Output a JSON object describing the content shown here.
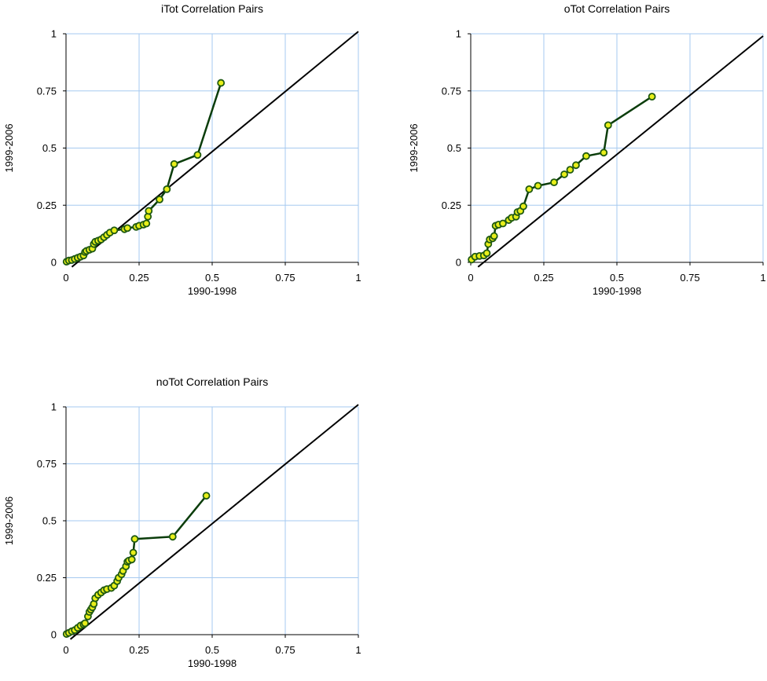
{
  "colors": {
    "grid": "#a6caf0",
    "series_line": "#0b3d0b",
    "marker_fill": "#e8ef1a",
    "marker_stroke": "#1f5a12",
    "reference_line": "#000000"
  },
  "chart_data": [
    {
      "type": "scatter",
      "title": "iTot Correlation Pairs",
      "xlabel": "1990-1998",
      "ylabel": "1999-2006",
      "xlim": [
        0,
        1
      ],
      "ylim": [
        0,
        1
      ],
      "xticks": [
        "0",
        "0.25",
        "0.5",
        "0.75",
        "1"
      ],
      "yticks": [
        "0",
        "0.25",
        "0.5",
        "0.75",
        "1"
      ],
      "grid": true,
      "reference_line": [
        [
          0.02,
          -0.02
        ],
        [
          1.0,
          1.01
        ]
      ],
      "points": [
        [
          0.002,
          0.003
        ],
        [
          0.01,
          0.008
        ],
        [
          0.02,
          0.01
        ],
        [
          0.03,
          0.015
        ],
        [
          0.04,
          0.02
        ],
        [
          0.05,
          0.025
        ],
        [
          0.06,
          0.03
        ],
        [
          0.065,
          0.045
        ],
        [
          0.07,
          0.05
        ],
        [
          0.08,
          0.055
        ],
        [
          0.09,
          0.06
        ],
        [
          0.095,
          0.08
        ],
        [
          0.1,
          0.09
        ],
        [
          0.11,
          0.095
        ],
        [
          0.12,
          0.1
        ],
        [
          0.13,
          0.11
        ],
        [
          0.14,
          0.12
        ],
        [
          0.15,
          0.13
        ],
        [
          0.165,
          0.14
        ],
        [
          0.2,
          0.145
        ],
        [
          0.21,
          0.15
        ],
        [
          0.24,
          0.155
        ],
        [
          0.25,
          0.16
        ],
        [
          0.265,
          0.165
        ],
        [
          0.275,
          0.17
        ],
        [
          0.28,
          0.2
        ],
        [
          0.283,
          0.225
        ],
        [
          0.32,
          0.275
        ],
        [
          0.345,
          0.32
        ],
        [
          0.37,
          0.43
        ],
        [
          0.45,
          0.47
        ],
        [
          0.53,
          0.785
        ]
      ]
    },
    {
      "type": "scatter",
      "title": "oTot Correlation Pairs",
      "xlabel": "1990-1998",
      "ylabel": "1999-2006",
      "xlim": [
        0,
        1
      ],
      "ylim": [
        0,
        1
      ],
      "xticks": [
        "0",
        "0.25",
        "0.5",
        "0.75",
        "1"
      ],
      "yticks": [
        "0",
        "0.25",
        "0.5",
        "0.75",
        "1"
      ],
      "grid": true,
      "reference_line": [
        [
          0.025,
          -0.02
        ],
        [
          1.0,
          0.99
        ]
      ],
      "points": [
        [
          0.003,
          0.012
        ],
        [
          0.015,
          0.025
        ],
        [
          0.03,
          0.028
        ],
        [
          0.045,
          0.03
        ],
        [
          0.055,
          0.04
        ],
        [
          0.06,
          0.08
        ],
        [
          0.065,
          0.1
        ],
        [
          0.075,
          0.105
        ],
        [
          0.08,
          0.115
        ],
        [
          0.085,
          0.16
        ],
        [
          0.095,
          0.165
        ],
        [
          0.11,
          0.17
        ],
        [
          0.13,
          0.185
        ],
        [
          0.14,
          0.195
        ],
        [
          0.155,
          0.2
        ],
        [
          0.16,
          0.22
        ],
        [
          0.17,
          0.225
        ],
        [
          0.18,
          0.245
        ],
        [
          0.2,
          0.32
        ],
        [
          0.23,
          0.335
        ],
        [
          0.285,
          0.35
        ],
        [
          0.32,
          0.385
        ],
        [
          0.34,
          0.405
        ],
        [
          0.36,
          0.425
        ],
        [
          0.395,
          0.465
        ],
        [
          0.455,
          0.48
        ],
        [
          0.47,
          0.6
        ],
        [
          0.62,
          0.725
        ]
      ]
    },
    {
      "type": "scatter",
      "title": "noTot Correlation Pairs",
      "xlabel": "1990-1998",
      "ylabel": "1999-2006",
      "xlim": [
        0,
        1
      ],
      "ylim": [
        0,
        1
      ],
      "xticks": [
        "0",
        "0.25",
        "0.5",
        "0.75",
        "1"
      ],
      "yticks": [
        "0",
        "0.25",
        "0.5",
        "0.75",
        "1"
      ],
      "grid": true,
      "reference_line": [
        [
          0.015,
          -0.02
        ],
        [
          1.0,
          1.01
        ]
      ],
      "points": [
        [
          0.002,
          0.003
        ],
        [
          0.01,
          0.008
        ],
        [
          0.02,
          0.015
        ],
        [
          0.03,
          0.02
        ],
        [
          0.04,
          0.03
        ],
        [
          0.05,
          0.04
        ],
        [
          0.06,
          0.045
        ],
        [
          0.065,
          0.05
        ],
        [
          0.075,
          0.08
        ],
        [
          0.08,
          0.1
        ],
        [
          0.085,
          0.11
        ],
        [
          0.09,
          0.12
        ],
        [
          0.095,
          0.135
        ],
        [
          0.1,
          0.16
        ],
        [
          0.11,
          0.175
        ],
        [
          0.12,
          0.185
        ],
        [
          0.13,
          0.195
        ],
        [
          0.14,
          0.2
        ],
        [
          0.155,
          0.205
        ],
        [
          0.165,
          0.215
        ],
        [
          0.175,
          0.235
        ],
        [
          0.18,
          0.25
        ],
        [
          0.19,
          0.265
        ],
        [
          0.195,
          0.28
        ],
        [
          0.205,
          0.3
        ],
        [
          0.21,
          0.32
        ],
        [
          0.215,
          0.325
        ],
        [
          0.225,
          0.33
        ],
        [
          0.23,
          0.36
        ],
        [
          0.235,
          0.42
        ],
        [
          0.365,
          0.43
        ],
        [
          0.48,
          0.61
        ]
      ]
    }
  ]
}
